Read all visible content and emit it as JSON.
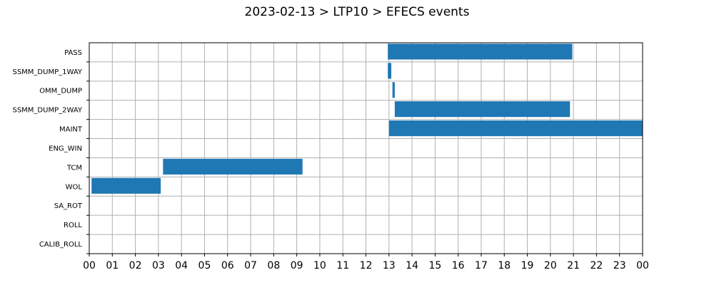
{
  "chart_data": {
    "type": "bar",
    "orientation": "horizontal-timeline",
    "title": "2023-02-13 > LTP10 > EFECS events",
    "xlabel": "",
    "ylabel": "",
    "x_unit": "hour",
    "xlim": [
      0,
      24
    ],
    "x_tick_labels": [
      "00",
      "01",
      "02",
      "03",
      "04",
      "05",
      "06",
      "07",
      "08",
      "09",
      "10",
      "11",
      "12",
      "13",
      "14",
      "15",
      "16",
      "17",
      "18",
      "19",
      "20",
      "21",
      "22",
      "23",
      "00"
    ],
    "categories": [
      "PASS",
      "SSMM_DUMP_1WAY",
      "OMM_DUMP",
      "SSMM_DUMP_2WAY",
      "MAINT",
      "ENG_WIN",
      "TCM",
      "WOL",
      "SA_ROT",
      "ROLL",
      "CALIB_ROLL"
    ],
    "grid": true,
    "bar_color": "#1f77b4",
    "events": [
      {
        "category": "PASS",
        "start": 12.95,
        "end": 20.95
      },
      {
        "category": "SSMM_DUMP_1WAY",
        "start": 12.95,
        "end": 13.1
      },
      {
        "category": "OMM_DUMP",
        "start": 13.15,
        "end": 13.25
      },
      {
        "category": "SSMM_DUMP_2WAY",
        "start": 13.25,
        "end": 20.85
      },
      {
        "category": "MAINT",
        "start": 13.0,
        "end": 24.0
      },
      {
        "category": "TCM",
        "start": 3.2,
        "end": 9.25
      },
      {
        "category": "WOL",
        "start": 0.1,
        "end": 3.1
      }
    ]
  }
}
